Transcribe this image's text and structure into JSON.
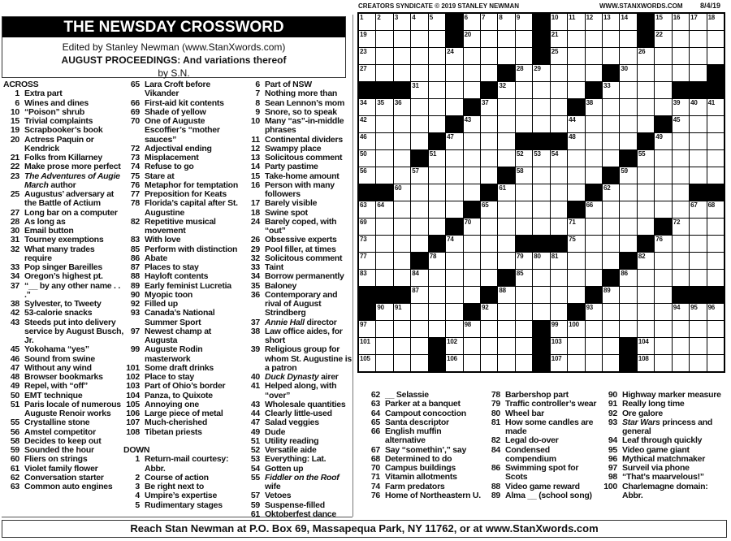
{
  "header": {
    "title": "THE NEWSDAY CROSSWORD",
    "editor": "Edited by Stanley Newman (www.StanXwords.com)",
    "theme": "AUGUST PROCEEDINGS: And variations thereof",
    "byline": "by S.N."
  },
  "grid_header": {
    "copyright": "CREATORS SYNDICATE © 2019 STANLEY NEWMAN",
    "website": "WWW.STANXWORDS.COM",
    "date": "8/4/19"
  },
  "headings": {
    "across": "ACROSS",
    "down": "DOWN"
  },
  "grid": [
    ".....#....#.....#....",
    ".....#....#.....#....",
    "..........#..........",
    "........#.....#.....#",
    "###....#.....#....###",
    "......#.....#........",
    ".....#...........#...",
    "....#....###....#....",
    "...#...........#.....",
    "........#.....#......",
    "##.....#.....#.....##",
    "......#.....#........",
    ".....#...........#...",
    "....#....###....#....",
    "...#...........#.....",
    "........#.....#......",
    "###....#.....#....###",
    "#.....#.....#........",
    "..........#..........",
    "....#.....#....#.....",
    "....#.....#....#....."
  ],
  "across": [
    {
      "n": "1",
      "t": "Extra part"
    },
    {
      "n": "6",
      "t": "Wines and dines"
    },
    {
      "n": "10",
      "t": "“Poison” shrub"
    },
    {
      "n": "15",
      "t": "Trivial complaints"
    },
    {
      "n": "19",
      "t": "Scrapbooker’s book"
    },
    {
      "n": "20",
      "t": "Actress Paquin or Kendrick"
    },
    {
      "n": "21",
      "t": "Folks from Killarney"
    },
    {
      "n": "22",
      "t": "Make prose more perfect"
    },
    {
      "n": "23",
      "i": "The Adventures of Augie March",
      "t": " author"
    },
    {
      "n": "25",
      "t": "Augustus’ adversary at the Battle of Actium"
    },
    {
      "n": "27",
      "t": "Long bar on a computer"
    },
    {
      "n": "28",
      "t": "As long as"
    },
    {
      "n": "30",
      "t": "Email button"
    },
    {
      "n": "31",
      "t": "Tourney exemptions"
    },
    {
      "n": "32",
      "t": "What many trades require"
    },
    {
      "n": "33",
      "t": "Pop singer Bareilles"
    },
    {
      "n": "34",
      "t": "Oregon’s highest pt."
    },
    {
      "n": "37",
      "t": "“__ by any other name . . .”"
    },
    {
      "n": "38",
      "t": "Sylvester, to Tweety"
    },
    {
      "n": "42",
      "t": "53-calorie snacks"
    },
    {
      "n": "43",
      "t": "Steeds put into delivery service by August Busch, Jr."
    },
    {
      "n": "45",
      "t": "Yokohama “yes”"
    },
    {
      "n": "46",
      "t": "Sound from swine"
    },
    {
      "n": "47",
      "t": "Without any wind"
    },
    {
      "n": "48",
      "t": "Browser bookmarks"
    },
    {
      "n": "49",
      "t": "Repel, with “off”"
    },
    {
      "n": "50",
      "t": "EMT technique"
    },
    {
      "n": "51",
      "t": "Paris locale of numerous Auguste Renoir works"
    },
    {
      "n": "55",
      "t": "Crystalline stone"
    },
    {
      "n": "56",
      "t": "Amstel competitor"
    },
    {
      "n": "58",
      "t": "Decides to keep out"
    },
    {
      "n": "59",
      "t": "Sounded the hour"
    },
    {
      "n": "60",
      "t": "Fliers on strings"
    },
    {
      "n": "61",
      "t": "Violet family flower"
    },
    {
      "n": "62",
      "t": "Conversation starter"
    },
    {
      "n": "63",
      "t": "Common auto engines"
    },
    {
      "n": "65",
      "t": "Lara Croft before Vikander"
    },
    {
      "n": "66",
      "t": "First-aid kit contents"
    },
    {
      "n": "69",
      "t": "Shade of yellow"
    },
    {
      "n": "70",
      "t": "One of Auguste Escoffier’s “mother sauces”"
    },
    {
      "n": "72",
      "t": "Adjectival ending"
    },
    {
      "n": "73",
      "t": "Misplacement"
    },
    {
      "n": "74",
      "t": "Refuse to go"
    },
    {
      "n": "75",
      "t": "Stare at"
    },
    {
      "n": "76",
      "t": "Metaphor for temptation"
    },
    {
      "n": "77",
      "t": "Preposition for Keats"
    },
    {
      "n": "78",
      "t": "Florida’s capital after St. Augustine"
    },
    {
      "n": "82",
      "t": "Repetitive musical movement"
    },
    {
      "n": "83",
      "t": "With love"
    },
    {
      "n": "85",
      "t": "Perform with distinction"
    },
    {
      "n": "86",
      "t": "Abate"
    },
    {
      "n": "87",
      "t": "Places to stay"
    },
    {
      "n": "88",
      "t": "Hayloft contents"
    },
    {
      "n": "89",
      "t": "Early feminist Lucretia"
    },
    {
      "n": "90",
      "t": "Myopic toon"
    },
    {
      "n": "92",
      "t": "Filled up"
    },
    {
      "n": "93",
      "t": "Canada’s National Summer Sport"
    },
    {
      "n": "97",
      "t": "Newest champ at Augusta"
    },
    {
      "n": "99",
      "t": "Auguste Rodin masterwork"
    },
    {
      "n": "101",
      "t": "Some draft drinks"
    },
    {
      "n": "102",
      "t": "Place to stay"
    },
    {
      "n": "103",
      "t": "Part of Ohio’s border"
    },
    {
      "n": "104",
      "t": "Panza, to Quixote"
    },
    {
      "n": "105",
      "t": "Annoying one"
    },
    {
      "n": "106",
      "t": "Large piece of metal"
    },
    {
      "n": "107",
      "t": "Much-cherished"
    },
    {
      "n": "108",
      "t": "Tibetan priests"
    }
  ],
  "down": [
    {
      "n": "1",
      "t": "Return-mail courtesy: Abbr."
    },
    {
      "n": "2",
      "t": "Course of action"
    },
    {
      "n": "3",
      "t": "Be right next to"
    },
    {
      "n": "4",
      "t": "Umpire’s expertise"
    },
    {
      "n": "5",
      "t": "Rudimentary stages"
    },
    {
      "n": "6",
      "t": "Part of NSW"
    },
    {
      "n": "7",
      "t": "Nothing more than"
    },
    {
      "n": "8",
      "t": "Sean Lennon’s mom"
    },
    {
      "n": "9",
      "t": "Snore, so to speak"
    },
    {
      "n": "10",
      "t": "Many “as”-in-middle phrases"
    },
    {
      "n": "11",
      "t": "Continental dividers"
    },
    {
      "n": "12",
      "t": "Swampy place"
    },
    {
      "n": "13",
      "t": "Solicitous comment"
    },
    {
      "n": "14",
      "t": "Party pastime"
    },
    {
      "n": "15",
      "t": "Take-home amount"
    },
    {
      "n": "16",
      "t": "Person with many followers"
    },
    {
      "n": "17",
      "t": "Barely visible"
    },
    {
      "n": "18",
      "t": "Swine spot"
    },
    {
      "n": "24",
      "t": "Barely coped, with “out”"
    },
    {
      "n": "26",
      "t": "Obsessive experts"
    },
    {
      "n": "29",
      "t": "Pool filler, at times"
    },
    {
      "n": "32",
      "t": "Solicitous comment"
    },
    {
      "n": "33",
      "t": "Taint"
    },
    {
      "n": "34",
      "t": "Borrow permanently"
    },
    {
      "n": "35",
      "t": "Baloney"
    },
    {
      "n": "36",
      "t": "Contemporary and rival of August Strindberg"
    },
    {
      "n": "37",
      "i": "Annie Hall",
      "t": " director"
    },
    {
      "n": "38",
      "t": "Law office aides, for short"
    },
    {
      "n": "39",
      "t": "Religious group for whom St. Augustine is a patron"
    },
    {
      "n": "40",
      "i": "Duck Dynasty",
      "t": " airer"
    },
    {
      "n": "41",
      "t": "Helped along, with “over”"
    },
    {
      "n": "43",
      "t": "Wholesale quantities"
    },
    {
      "n": "44",
      "t": "Clearly little-used"
    },
    {
      "n": "47",
      "t": "Salad veggies"
    },
    {
      "n": "49",
      "t": "Dude"
    },
    {
      "n": "51",
      "t": "Utility reading"
    },
    {
      "n": "52",
      "t": "Versatile aide"
    },
    {
      "n": "53",
      "t": "Everything: Lat."
    },
    {
      "n": "54",
      "t": "Gotten up"
    },
    {
      "n": "55",
      "i": "Fiddler on the Roof",
      "t": " wife"
    },
    {
      "n": "57",
      "t": "Vetoes"
    },
    {
      "n": "59",
      "t": "Suspense-filled"
    },
    {
      "n": "61",
      "t": "Oktoberfest dance"
    },
    {
      "n": "62",
      "t": "__ Selassie"
    },
    {
      "n": "63",
      "t": "Parker at a banquet"
    },
    {
      "n": "64",
      "t": "Campout concoction"
    },
    {
      "n": "65",
      "t": "Santa descriptor"
    },
    {
      "n": "66",
      "t": "English muffin alternative"
    },
    {
      "n": "67",
      "t": "Say “somethin’,” say"
    },
    {
      "n": "68",
      "t": "Determined to do"
    },
    {
      "n": "70",
      "t": "Campus buildings"
    },
    {
      "n": "71",
      "t": "Vitamin allotments"
    },
    {
      "n": "74",
      "t": "Farm predators"
    },
    {
      "n": "76",
      "t": "Home of Northeastern U."
    },
    {
      "n": "78",
      "t": "Barbershop part"
    },
    {
      "n": "79",
      "t": "Traffic controller’s wear"
    },
    {
      "n": "80",
      "t": "Wheel bar"
    },
    {
      "n": "81",
      "t": "How some candles are made"
    },
    {
      "n": "82",
      "t": "Legal do-over"
    },
    {
      "n": "84",
      "t": "Condensed compendium"
    },
    {
      "n": "86",
      "t": "Swimming spot for Scots"
    },
    {
      "n": "88",
      "t": "Video game reward"
    },
    {
      "n": "89",
      "t": "Alma __ (school song)"
    },
    {
      "n": "90",
      "t": "Highway marker measure"
    },
    {
      "n": "91",
      "t": "Really long time"
    },
    {
      "n": "92",
      "t": "Ore galore"
    },
    {
      "n": "93",
      "i": "Star Wars",
      "t": " princess and general"
    },
    {
      "n": "94",
      "t": "Leaf through quickly"
    },
    {
      "n": "95",
      "t": "Video game giant"
    },
    {
      "n": "96",
      "t": "Mythical matchmaker"
    },
    {
      "n": "97",
      "t": "Surveil via phone"
    },
    {
      "n": "98",
      "t": "“That’s maarvelous!”"
    },
    {
      "n": "100",
      "t": "Charlemagne domain: Abbr."
    }
  ],
  "footer": "Reach Stan Newman at P.O. Box 69, Massapequa Park, NY 11762, or at www.StanXwords.com"
}
